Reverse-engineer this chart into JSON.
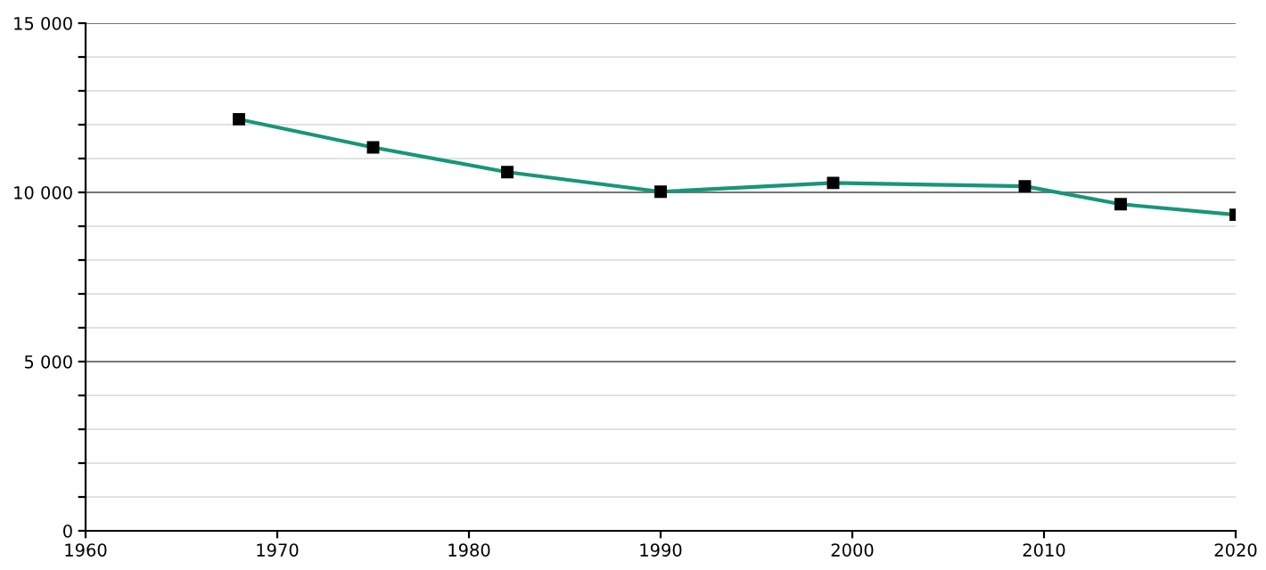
{
  "chart_data": {
    "type": "line",
    "x": [
      1968,
      1975,
      1982,
      1990,
      1999,
      2009,
      2014,
      2020
    ],
    "series": [
      {
        "color": "#17967a",
        "values": [
          12160,
          11330,
          10600,
          10020,
          10280,
          10180,
          9650,
          9340
        ]
      }
    ],
    "xlim": [
      1960,
      2020
    ],
    "xticks": [
      1960,
      1970,
      1980,
      1990,
      2000,
      2010,
      2020
    ],
    "ylim": [
      0,
      15000
    ],
    "yticks": [
      {
        "value": 0,
        "label": "0"
      },
      {
        "value": 1000,
        "label": null
      },
      {
        "value": 2000,
        "label": null
      },
      {
        "value": 3000,
        "label": null
      },
      {
        "value": 4000,
        "label": null
      },
      {
        "value": 5000,
        "label": "5 000"
      },
      {
        "value": 6000,
        "label": null
      },
      {
        "value": 7000,
        "label": null
      },
      {
        "value": 8000,
        "label": null
      },
      {
        "value": 9000,
        "label": null
      },
      {
        "value": 10000,
        "label": "10 000"
      },
      {
        "value": 11000,
        "label": null
      },
      {
        "value": 12000,
        "label": null
      },
      {
        "value": 13000,
        "label": null
      },
      {
        "value": 14000,
        "label": null
      },
      {
        "value": 15000,
        "label": "15 000"
      }
    ],
    "grid": "y",
    "marker": "square",
    "line_style": "solid"
  }
}
